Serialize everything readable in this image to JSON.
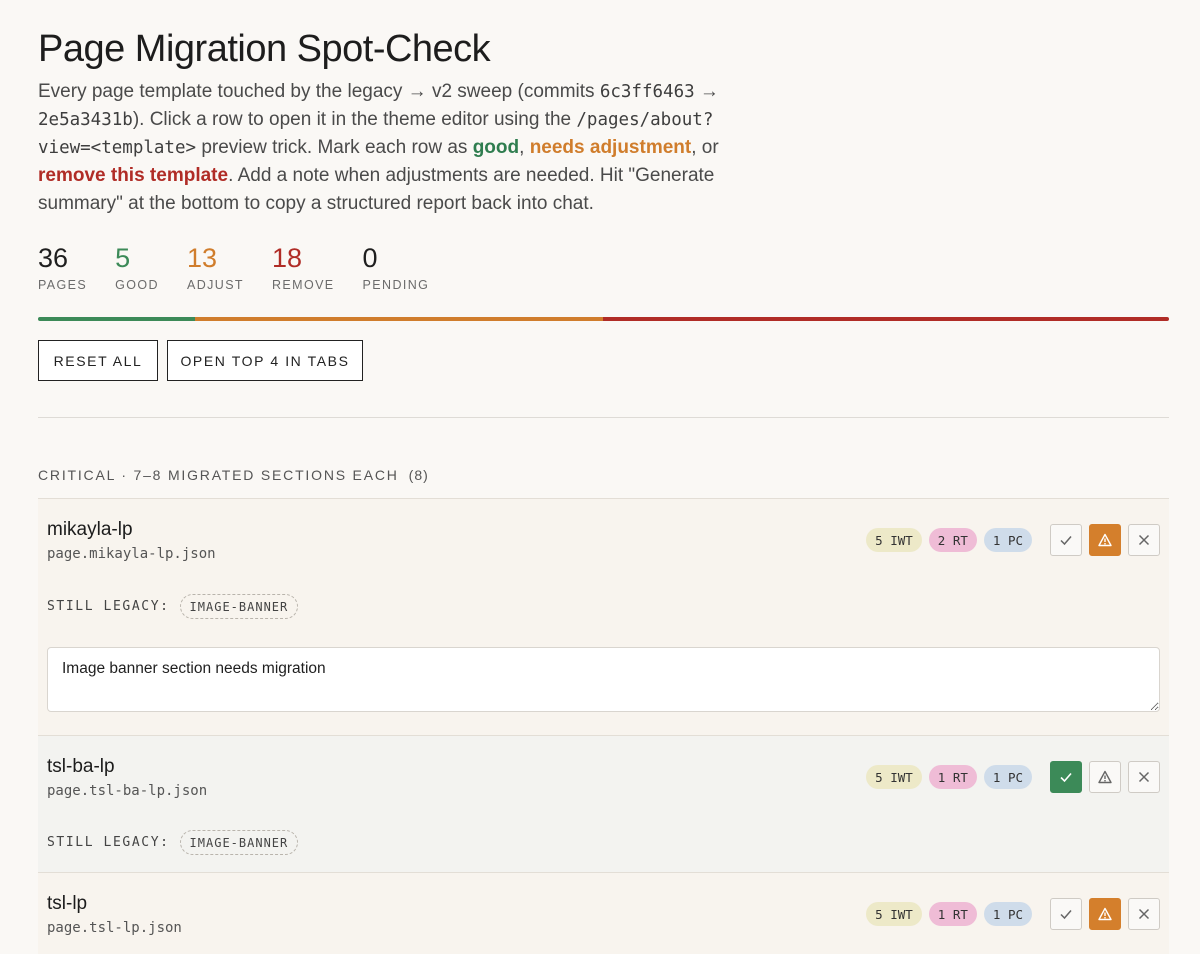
{
  "header": {
    "title": "Page Migration Spot-Check",
    "intro_1": "Every page template touched by the legacy → v2 sweep (commits ",
    "commit_from": "6c3ff6463",
    "arrow": " → ",
    "commit_to": "2e5a3431b",
    "intro_2": "). Click a row to open it in the theme editor using the ",
    "preview_path": "/pages/about?view=<template>",
    "intro_3": " preview trick. Mark each row as ",
    "good": "good",
    "comma": ", ",
    "adjust": "needs adjustment",
    "or": ", or ",
    "remove": "remove this template",
    "intro_4": ". Add a note when adjustments are needed. Hit \"Generate summary\" at the bottom to copy a structured report back into chat."
  },
  "stats": [
    {
      "value": "36",
      "label": "PAGES"
    },
    {
      "value": "5",
      "label": "GOOD"
    },
    {
      "value": "13",
      "label": "ADJUST"
    },
    {
      "value": "18",
      "label": "REMOVE"
    },
    {
      "value": "0",
      "label": "PENDING"
    }
  ],
  "progress": {
    "segments": [
      {
        "status": "good",
        "count": 5,
        "color": "#3c8a58"
      },
      {
        "status": "adjust",
        "count": 13,
        "color": "#d07d2c"
      },
      {
        "status": "remove",
        "count": 18,
        "color": "#b02c26"
      }
    ]
  },
  "toolbar": {
    "reset_label": "RESET ALL",
    "open_top_label": "OPEN TOP 4 IN TABS"
  },
  "group": {
    "title": "CRITICAL · 7–8 MIGRATED SECTIONS EACH",
    "count": "(8)"
  },
  "rows": [
    {
      "name": "mikayla-lp",
      "file": "page.mikayla-lp.json",
      "badges": [
        "5 IWT",
        "2 RT",
        "1 PC"
      ],
      "status": "adjust",
      "legacy_label": "STILL LEGACY:",
      "legacy": [
        "IMAGE-BANNER"
      ],
      "note": "Image banner section needs migration"
    },
    {
      "name": "tsl-ba-lp",
      "file": "page.tsl-ba-lp.json",
      "badges": [
        "5 IWT",
        "1 RT",
        "1 PC"
      ],
      "status": "good",
      "legacy_label": "STILL LEGACY:",
      "legacy": [
        "IMAGE-BANNER"
      ]
    },
    {
      "name": "tsl-lp",
      "file": "page.tsl-lp.json",
      "badges": [
        "5 IWT",
        "1 RT",
        "1 PC"
      ],
      "status": "adjust"
    }
  ],
  "icons": {
    "good": "check-icon",
    "adjust": "warning-icon",
    "remove": "close-icon"
  },
  "colors": {
    "good": "#3c8a58",
    "adjust": "#d47f2c",
    "remove": "#b02c26"
  }
}
